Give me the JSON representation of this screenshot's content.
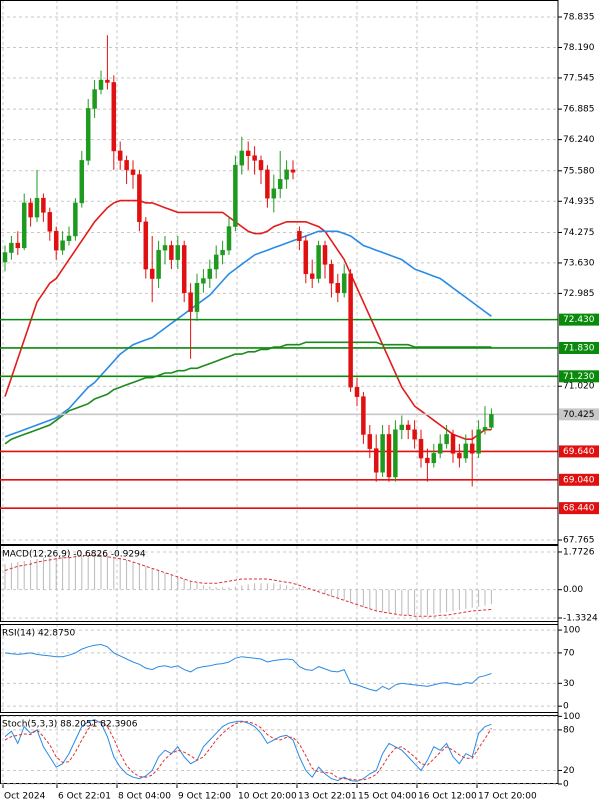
{
  "chart_data": [
    {
      "type": "candlestick",
      "open": [
        73.65,
        73.85,
        74.05,
        73.95,
        74.9,
        74.6,
        75.0,
        74.7,
        74.3,
        73.9,
        74.1,
        74.2,
        74.9,
        75.8,
        76.9,
        77.3,
        77.5,
        77.45,
        76.0,
        75.8,
        75.6,
        75.5,
        74.5,
        73.5,
        73.3,
        73.9,
        74.0,
        73.7,
        74.0,
        73.0,
        72.6,
        73.2,
        73.3,
        73.5,
        73.8,
        73.9,
        74.4,
        75.7,
        76.0,
        75.9,
        75.8,
        75.6,
        75.0,
        75.2,
        75.4,
        75.6,
        74.3,
        74.1,
        73.4,
        73.3,
        74.0,
        73.6,
        73.2,
        73.0,
        73.4,
        71.0,
        70.8,
        70.0,
        69.7,
        69.2,
        70.0,
        69.1,
        70.1,
        70.2,
        70.1,
        69.9,
        69.5,
        69.4,
        69.6,
        69.8,
        70.0,
        69.6,
        69.5,
        69.8,
        69.6,
        70.1,
        70.15
      ],
      "high": [
        74.0,
        74.2,
        74.3,
        75.1,
        75.0,
        75.6,
        75.1,
        74.8,
        74.4,
        74.3,
        74.4,
        75.0,
        76.0,
        77.1,
        77.5,
        77.7,
        78.45,
        77.6,
        76.2,
        75.9,
        75.8,
        75.6,
        74.6,
        74.2,
        74.1,
        74.2,
        74.1,
        74.2,
        74.1,
        73.2,
        73.4,
        73.5,
        73.7,
        74.0,
        74.1,
        74.6,
        75.9,
        76.3,
        76.2,
        76.1,
        75.9,
        75.7,
        75.5,
        76.0,
        75.8,
        75.8,
        74.4,
        74.2,
        73.7,
        74.1,
        74.1,
        73.7,
        73.4,
        73.6,
        73.5,
        71.2,
        70.9,
        70.2,
        70.0,
        70.2,
        70.2,
        70.3,
        70.4,
        70.3,
        70.3,
        70.1,
        69.7,
        69.8,
        70.0,
        70.2,
        70.1,
        69.8,
        70.0,
        70.1,
        70.3,
        70.6,
        70.55
      ],
      "low": [
        73.45,
        73.7,
        73.8,
        73.9,
        74.4,
        74.5,
        74.5,
        74.1,
        73.7,
        73.8,
        74.0,
        74.1,
        74.8,
        75.7,
        76.7,
        77.2,
        77.3,
        75.6,
        75.6,
        75.3,
        75.2,
        74.3,
        73.3,
        72.8,
        73.1,
        73.6,
        73.5,
        73.5,
        72.8,
        71.6,
        72.4,
        73.0,
        73.1,
        73.3,
        73.6,
        73.8,
        74.3,
        75.5,
        75.6,
        75.5,
        75.3,
        74.8,
        74.7,
        75.0,
        75.2,
        75.4,
        73.9,
        73.2,
        73.1,
        73.2,
        73.3,
        72.9,
        72.8,
        72.9,
        70.9,
        70.6,
        69.8,
        69.5,
        69.0,
        69.1,
        69.0,
        69.0,
        69.9,
        69.9,
        69.7,
        69.3,
        69.0,
        69.3,
        69.5,
        69.7,
        69.4,
        69.3,
        69.4,
        68.9,
        69.5,
        70.0,
        70.1
      ],
      "close": [
        73.85,
        74.05,
        73.95,
        74.9,
        74.6,
        75.0,
        74.7,
        74.3,
        73.9,
        74.1,
        74.2,
        74.9,
        75.8,
        76.9,
        77.3,
        77.5,
        77.45,
        76.0,
        75.8,
        75.6,
        75.5,
        74.5,
        73.5,
        73.3,
        73.9,
        74.0,
        73.7,
        74.0,
        73.0,
        72.6,
        73.2,
        73.3,
        73.5,
        73.8,
        73.9,
        74.4,
        75.7,
        76.0,
        75.9,
        75.8,
        75.6,
        75.0,
        75.2,
        75.4,
        75.6,
        75.55,
        74.1,
        73.4,
        73.3,
        74.0,
        73.6,
        73.2,
        73.0,
        73.4,
        71.0,
        70.8,
        70.0,
        69.7,
        69.2,
        70.0,
        69.1,
        70.1,
        70.2,
        70.1,
        69.9,
        69.5,
        69.4,
        69.6,
        69.8,
        70.0,
        69.6,
        69.5,
        69.8,
        69.6,
        70.1,
        70.15,
        70.425
      ],
      "up_color": "#1f9a1f",
      "down_color": "#e01010",
      "series": [
        {
          "color": "#e31b1b",
          "style": "solid",
          "values": [
            70.8,
            71.2,
            71.6,
            72.0,
            72.4,
            72.8,
            73.0,
            73.2,
            73.3,
            73.5,
            73.7,
            73.9,
            74.1,
            74.3,
            74.5,
            74.65,
            74.8,
            74.9,
            74.95,
            74.95,
            74.95,
            74.95,
            74.9,
            74.9,
            74.85,
            74.8,
            74.75,
            74.7,
            74.7,
            74.7,
            74.7,
            74.7,
            74.7,
            74.7,
            74.7,
            74.6,
            74.5,
            74.4,
            74.3,
            74.25,
            74.25,
            74.3,
            74.4,
            74.45,
            74.5,
            74.5,
            74.5,
            74.5,
            74.45,
            74.4,
            74.3,
            74.1,
            73.9,
            73.7,
            73.4,
            73.1,
            72.8,
            72.5,
            72.2,
            71.9,
            71.6,
            71.3,
            71.0,
            70.8,
            70.6,
            70.5,
            70.4,
            70.3,
            70.2,
            70.1,
            70.0,
            69.95,
            69.9,
            69.9,
            70.0,
            70.1,
            70.1
          ]
        },
        {
          "color": "#2a8be6",
          "style": "solid",
          "values": [
            69.95,
            70.0,
            70.05,
            70.1,
            70.15,
            70.2,
            70.25,
            70.3,
            70.35,
            70.45,
            70.55,
            70.7,
            70.85,
            71.0,
            71.1,
            71.25,
            71.4,
            71.55,
            71.7,
            71.8,
            71.9,
            71.95,
            72.0,
            72.05,
            72.15,
            72.25,
            72.35,
            72.45,
            72.55,
            72.65,
            72.75,
            72.85,
            72.95,
            73.1,
            73.25,
            73.4,
            73.5,
            73.6,
            73.7,
            73.8,
            73.85,
            73.9,
            73.95,
            74.0,
            74.05,
            74.1,
            74.15,
            74.2,
            74.25,
            74.3,
            74.3,
            74.3,
            74.3,
            74.25,
            74.2,
            74.1,
            74.0,
            73.95,
            73.9,
            73.85,
            73.8,
            73.75,
            73.7,
            73.6,
            73.5,
            73.45,
            73.4,
            73.35,
            73.3,
            73.2,
            73.1,
            73.0,
            72.9,
            72.8,
            72.7,
            72.6,
            72.5
          ]
        },
        {
          "color": "#1c8a1c",
          "style": "solid",
          "values": [
            69.8,
            69.9,
            69.95,
            70.0,
            70.05,
            70.1,
            70.15,
            70.2,
            70.3,
            70.4,
            70.5,
            70.55,
            70.6,
            70.65,
            70.75,
            70.8,
            70.85,
            70.95,
            71.0,
            71.05,
            71.1,
            71.15,
            71.2,
            71.2,
            71.25,
            71.3,
            71.3,
            71.35,
            71.35,
            71.4,
            71.4,
            71.45,
            71.5,
            71.55,
            71.6,
            71.65,
            71.7,
            71.7,
            71.75,
            71.75,
            71.8,
            71.8,
            71.85,
            71.85,
            71.9,
            71.9,
            71.9,
            71.95,
            71.95,
            71.95,
            71.95,
            71.95,
            71.95,
            71.95,
            71.95,
            71.95,
            71.95,
            71.95,
            71.95,
            71.9,
            71.9,
            71.9,
            71.9,
            71.9,
            71.85,
            71.85,
            71.85,
            71.85,
            71.85,
            71.85,
            71.85,
            71.85,
            71.85,
            71.85,
            71.85,
            71.85,
            71.85
          ]
        }
      ],
      "ylim": [
        67.66,
        79.195
      ],
      "yticks": [
        78.835,
        {
          "value": 78.19,
          "label": "78.190"
        },
        77.545,
        76.885,
        {
          "value": 76.24,
          "label": "76.240"
        },
        {
          "value": 75.58,
          "label": "75.580"
        },
        74.935,
        74.275,
        {
          "value": 73.63,
          "label": "73.630"
        },
        72.985,
        {
          "value": 71.02,
          "label": "71.020"
        },
        67.765
      ],
      "grid": true,
      "levels": [
        {
          "value": 72.43,
          "label": "72.430",
          "color": "#0a8a0a"
        },
        {
          "value": 71.83,
          "label": "71.830",
          "color": "#0a8a0a"
        },
        {
          "value": 71.23,
          "label": "71.230",
          "color": "#0a8a0a"
        },
        {
          "value": 70.425,
          "label": "70.425",
          "color": "#c8c8c8"
        },
        {
          "value": 69.64,
          "label": "69.640",
          "color": "#e01010"
        },
        {
          "value": 69.04,
          "label": "69.040",
          "color": "#e01010"
        },
        {
          "value": 68.44,
          "label": "68.440",
          "color": "#e01010"
        }
      ],
      "x_labels": [
        "Oct 2024",
        "6 Oct 22:01",
        "8 Oct 04:00",
        "9 Oct 12:00",
        "10 Oct 20:00",
        "13 Oct 22:01",
        "15 Oct 04:00",
        "16 Oct 12:00",
        "17 Oct 20:00"
      ]
    },
    {
      "type": "indicator",
      "title": "MACD(12,26,9) -0.6826 -0.9294",
      "ylim": [
        -1.52,
        2.1
      ],
      "yticks": [
        1.7726,
        {
          "value": 0,
          "label": "0.00"
        },
        -1.3324
      ],
      "grid": true,
      "series": [
        {
          "color": "#b8b8b8",
          "style": "histogram",
          "values": [
            1.2,
            1.25,
            1.3,
            1.35,
            1.4,
            1.45,
            1.5,
            1.5,
            1.5,
            1.55,
            1.55,
            1.6,
            1.6,
            1.6,
            1.65,
            1.65,
            1.6,
            1.55,
            1.5,
            1.4,
            1.3,
            1.2,
            1.1,
            1.0,
            0.9,
            0.8,
            0.7,
            0.6,
            0.5,
            0.4,
            0.3,
            0.2,
            0.15,
            0.1,
            0.1,
            0.1,
            0.15,
            0.2,
            0.25,
            0.3,
            0.3,
            0.3,
            0.3,
            0.25,
            0.2,
            0.15,
            0.1,
            0.05,
            0,
            -0.1,
            -0.2,
            -0.3,
            -0.4,
            -0.5,
            -0.6,
            -0.7,
            -0.8,
            -0.9,
            -1.0,
            -1.05,
            -1.1,
            -1.15,
            -1.2,
            -1.2,
            -1.2,
            -1.2,
            -1.2,
            -1.15,
            -1.1,
            -1.05,
            -1.0,
            -0.95,
            -0.9,
            -0.85,
            -0.8,
            -0.75,
            -0.68
          ]
        },
        {
          "color": "#e03030",
          "style": "dashed",
          "values": [
            0.9,
            1.0,
            1.1,
            1.15,
            1.2,
            1.3,
            1.35,
            1.4,
            1.45,
            1.5,
            1.5,
            1.55,
            1.6,
            1.6,
            1.6,
            1.6,
            1.55,
            1.5,
            1.45,
            1.4,
            1.3,
            1.2,
            1.1,
            1.0,
            0.9,
            0.8,
            0.7,
            0.6,
            0.5,
            0.4,
            0.35,
            0.3,
            0.3,
            0.3,
            0.35,
            0.4,
            0.45,
            0.5,
            0.5,
            0.5,
            0.5,
            0.5,
            0.45,
            0.4,
            0.35,
            0.3,
            0.2,
            0.1,
            0,
            -0.1,
            -0.2,
            -0.3,
            -0.4,
            -0.5,
            -0.6,
            -0.7,
            -0.8,
            -0.9,
            -1.0,
            -1.05,
            -1.1,
            -1.15,
            -1.2,
            -1.2,
            -1.25,
            -1.25,
            -1.25,
            -1.25,
            -1.2,
            -1.2,
            -1.15,
            -1.1,
            -1.05,
            -1.0,
            -0.98,
            -0.95,
            -0.93
          ]
        }
      ]
    },
    {
      "type": "indicator",
      "title": "RSI(14) 42.8750",
      "ylim": [
        -9,
        108
      ],
      "yticks": [
        100,
        70,
        30,
        0
      ],
      "grid": true,
      "series": [
        {
          "color": "#2a8be6",
          "style": "solid",
          "values": [
            70,
            69,
            68,
            69,
            70,
            68,
            67,
            66,
            65,
            65,
            67,
            70,
            75,
            78,
            80,
            81,
            78,
            70,
            66,
            62,
            58,
            55,
            50,
            48,
            52,
            53,
            51,
            53,
            48,
            45,
            50,
            52,
            53,
            55,
            56,
            58,
            63,
            65,
            64,
            63,
            62,
            58,
            60,
            61,
            62,
            61,
            52,
            48,
            47,
            52,
            49,
            46,
            45,
            48,
            30,
            28,
            25,
            22,
            20,
            26,
            22,
            28,
            30,
            29,
            28,
            27,
            26,
            28,
            30,
            31,
            29,
            28,
            31,
            30,
            38,
            40,
            42.875
          ]
        }
      ]
    },
    {
      "type": "indicator",
      "title": "Stoch(5,3,3) 88.2051 82.3906",
      "ylim": [
        0,
        102
      ],
      "yticks": [
        100,
        80,
        20,
        0
      ],
      "grid": true,
      "series": [
        {
          "color": "#2a8be6",
          "style": "solid",
          "values": [
            70,
            78,
            60,
            85,
            75,
            80,
            55,
            40,
            25,
            30,
            45,
            65,
            85,
            92,
            95,
            90,
            70,
            40,
            25,
            15,
            10,
            8,
            12,
            20,
            40,
            50,
            45,
            55,
            40,
            30,
            35,
            55,
            65,
            75,
            85,
            90,
            92,
            93,
            90,
            85,
            75,
            60,
            65,
            70,
            72,
            65,
            40,
            20,
            10,
            25,
            15,
            8,
            5,
            10,
            5,
            4,
            8,
            15,
            20,
            45,
            60,
            55,
            50,
            40,
            30,
            20,
            35,
            55,
            50,
            60,
            40,
            30,
            45,
            40,
            75,
            85,
            88.2051
          ]
        },
        {
          "color": "#e03030",
          "style": "dashed",
          "values": [
            65,
            70,
            72,
            74,
            73,
            80,
            70,
            58,
            40,
            32,
            33,
            47,
            65,
            81,
            91,
            92,
            85,
            67,
            45,
            27,
            17,
            11,
            10,
            13,
            24,
            37,
            45,
            50,
            47,
            42,
            35,
            40,
            52,
            65,
            75,
            83,
            89,
            92,
            92,
            89,
            83,
            73,
            67,
            65,
            69,
            69,
            59,
            42,
            23,
            18,
            17,
            16,
            9,
            8,
            7,
            6,
            6,
            9,
            14,
            27,
            42,
            53,
            55,
            48,
            40,
            30,
            28,
            37,
            47,
            55,
            50,
            43,
            38,
            38,
            53,
            67,
            82.3906
          ]
        }
      ]
    }
  ]
}
